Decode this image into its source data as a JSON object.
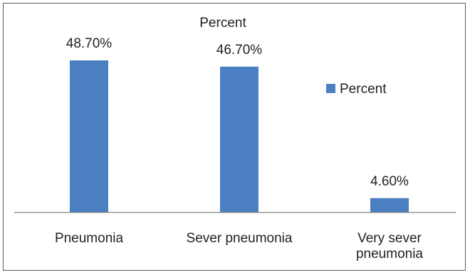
{
  "chart_data": {
    "type": "bar",
    "title": "Percent",
    "categories": [
      "Pneumonia",
      "Sever pneumonia",
      "Very sever pneumonia"
    ],
    "category_lines": [
      [
        "Pneumonia"
      ],
      [
        "Sever pneumonia"
      ],
      [
        "Very sever",
        "pneumonia"
      ]
    ],
    "series": [
      {
        "name": "Percent",
        "values": [
          48.7,
          46.7,
          4.6
        ],
        "labels": [
          "48.70%",
          "46.70%",
          "4.60%"
        ]
      }
    ],
    "ylim": [
      0,
      48.7
    ],
    "grid": false,
    "legend": "right",
    "colors": {
      "bar": "#4a7fc1",
      "axis": "#888888",
      "frame": "#5a5a5a"
    }
  }
}
